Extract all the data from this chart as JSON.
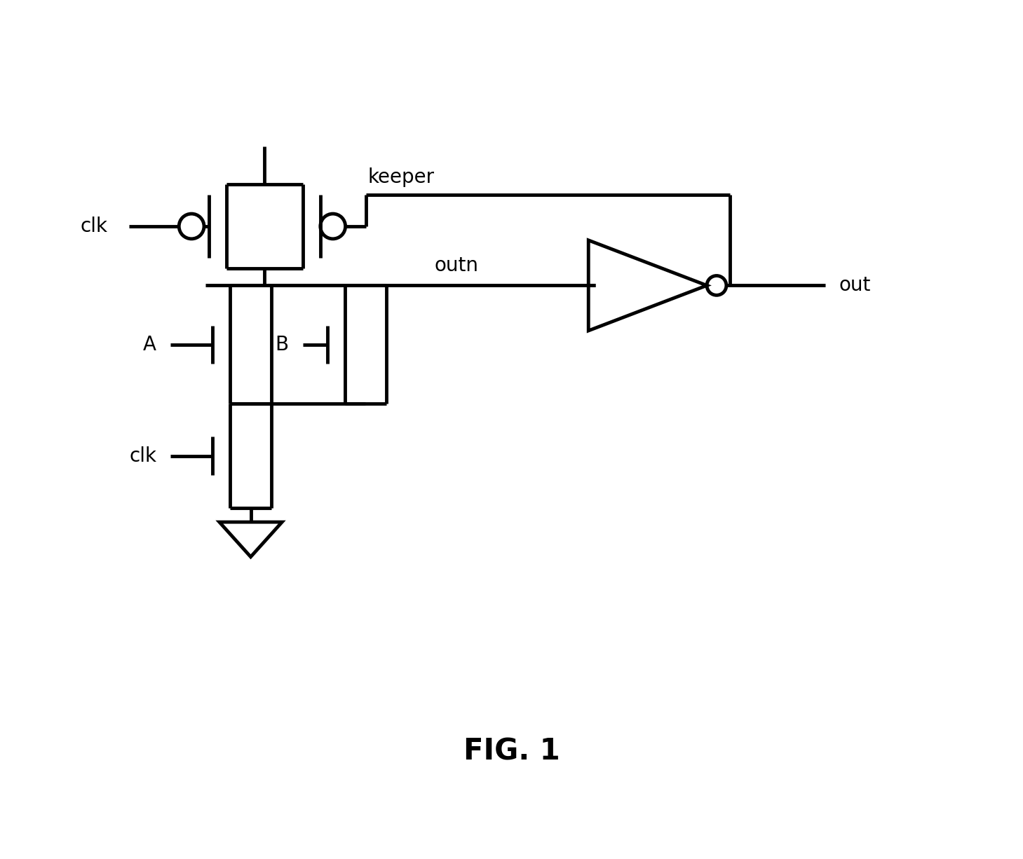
{
  "title": "FIG. 1",
  "background_color": "#ffffff",
  "line_color": "#000000",
  "line_width": 3.5,
  "fig_width": 14.59,
  "fig_height": 12.26,
  "labels": {
    "clk_top": "clk",
    "keeper": "keeper",
    "outn": "outn",
    "A": "A",
    "B": "B",
    "clk_bot": "clk",
    "out": "out",
    "fig": "FIG. 1"
  }
}
